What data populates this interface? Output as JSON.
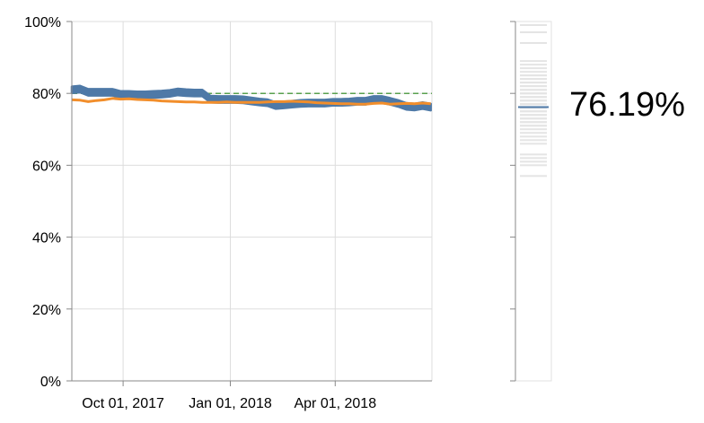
{
  "chart_data": {
    "type": "line",
    "title": "",
    "xlabel": "",
    "ylabel": "",
    "ylim": [
      0,
      100
    ],
    "xlim": [
      "2017-08-18",
      "2018-06-23"
    ],
    "y_ticks": [
      "0%",
      "20%",
      "40%",
      "60%",
      "80%",
      "100%"
    ],
    "y_tick_values": [
      0,
      20,
      40,
      60,
      80,
      100
    ],
    "x_ticks": [
      {
        "date": "2017-10-01",
        "label": "Oct 01, 2017"
      },
      {
        "date": "2018-01-01",
        "label": "Jan 01, 2018"
      },
      {
        "date": "2018-04-01",
        "label": "Apr 01, 2018"
      }
    ],
    "grid": true,
    "reference_line": {
      "value": 80,
      "color": "#59a14f",
      "style": "dashed"
    },
    "series": [
      {
        "color": "#4e79a7",
        "style": "band",
        "x": [
          "2017-08-18",
          "2017-08-25",
          "2017-09-01",
          "2017-09-08",
          "2017-09-15",
          "2017-09-22",
          "2017-09-29",
          "2017-10-06",
          "2017-10-13",
          "2017-10-20",
          "2017-10-27",
          "2017-11-03",
          "2017-11-10",
          "2017-11-17",
          "2017-11-24",
          "2017-12-01",
          "2017-12-08",
          "2017-12-15",
          "2017-12-22",
          "2017-12-29",
          "2018-01-05",
          "2018-01-12",
          "2018-01-19",
          "2018-01-26",
          "2018-02-02",
          "2018-02-09",
          "2018-02-16",
          "2018-02-23",
          "2018-03-02",
          "2018-03-09",
          "2018-03-16",
          "2018-03-23",
          "2018-03-30",
          "2018-04-06",
          "2018-04-13",
          "2018-04-20",
          "2018-04-27",
          "2018-05-04",
          "2018-05-11",
          "2018-05-18",
          "2018-05-25",
          "2018-06-01",
          "2018-06-08",
          "2018-06-15",
          "2018-06-22"
        ],
        "values": [
          81.0,
          81.2,
          80.3,
          80.3,
          80.3,
          80.3,
          79.7,
          79.7,
          79.6,
          79.6,
          79.7,
          79.8,
          80.0,
          80.4,
          80.2,
          80.1,
          80.1,
          78.4,
          78.3,
          78.3,
          78.3,
          78.2,
          77.9,
          77.6,
          77.4,
          76.6,
          76.8,
          77.0,
          77.2,
          77.3,
          77.3,
          77.3,
          77.5,
          77.5,
          77.6,
          77.8,
          77.8,
          78.3,
          78.3,
          77.8,
          77.2,
          76.4,
          76.2,
          76.6,
          76.19
        ],
        "band_halfwidth": 0.9
      },
      {
        "color": "#f28e2b",
        "style": "line",
        "x": [
          "2017-08-18",
          "2017-08-25",
          "2017-09-01",
          "2017-09-08",
          "2017-09-15",
          "2017-09-22",
          "2017-09-29",
          "2017-10-06",
          "2017-10-13",
          "2017-10-20",
          "2017-10-27",
          "2017-11-03",
          "2017-11-10",
          "2017-11-17",
          "2017-11-24",
          "2017-12-01",
          "2017-12-08",
          "2017-12-15",
          "2017-12-22",
          "2017-12-29",
          "2018-01-05",
          "2018-01-12",
          "2018-01-19",
          "2018-01-26",
          "2018-02-02",
          "2018-02-09",
          "2018-02-16",
          "2018-02-23",
          "2018-03-02",
          "2018-03-09",
          "2018-03-16",
          "2018-03-23",
          "2018-03-30",
          "2018-04-06",
          "2018-04-13",
          "2018-04-20",
          "2018-04-27",
          "2018-05-04",
          "2018-05-11",
          "2018-05-18",
          "2018-05-25",
          "2018-06-01",
          "2018-06-08",
          "2018-06-15",
          "2018-06-22"
        ],
        "values": [
          78.2,
          78.1,
          77.7,
          78.0,
          78.2,
          78.6,
          78.4,
          78.5,
          78.3,
          78.2,
          78.1,
          77.9,
          77.8,
          77.7,
          77.6,
          77.6,
          77.5,
          77.5,
          77.5,
          77.6,
          77.5,
          77.5,
          77.5,
          77.5,
          77.6,
          77.7,
          77.7,
          77.8,
          77.7,
          77.6,
          77.4,
          77.3,
          77.2,
          77.1,
          77.1,
          77.0,
          77.0,
          77.2,
          77.3,
          77.0,
          77.1,
          77.2,
          77.1,
          77.3,
          77.1
        ]
      }
    ],
    "strip": {
      "ylim": [
        0,
        100
      ],
      "tick_values": [
        0,
        20,
        40,
        60,
        80,
        100
      ],
      "marker_value": 76.19,
      "marker_color": "#4e79a7",
      "values": [
        99,
        97,
        94,
        89,
        88,
        87,
        86,
        85,
        85,
        84,
        84,
        83,
        83,
        82,
        82,
        81,
        81,
        80,
        80,
        79,
        79,
        78,
        78,
        77,
        77,
        76,
        76,
        75,
        75,
        74,
        74,
        73,
        73,
        72,
        72,
        71,
        71,
        70,
        69,
        68,
        67,
        66,
        63,
        62,
        61,
        60,
        57
      ]
    }
  },
  "current_value": "76.19%"
}
